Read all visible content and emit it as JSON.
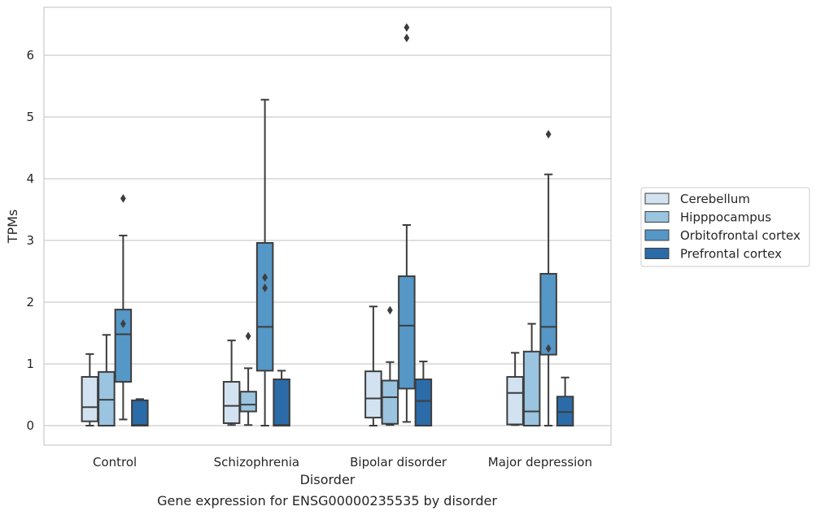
{
  "caption": "Gene expression for ENSG00000235535 by disorder",
  "chart_data": {
    "type": "box",
    "xlabel": "Disorder",
    "ylabel": "TPMs",
    "ylim": [
      -0.32,
      7.8
    ],
    "yticks": [
      0,
      1,
      2,
      3,
      4,
      5,
      6
    ],
    "grid": true,
    "legend_position": "right",
    "categories": [
      "Control",
      "Schizophrenia",
      "Bipolar disorder",
      "Major depression"
    ],
    "series": [
      {
        "name": "Cerebellum",
        "color": "#d3e2f0",
        "boxes": [
          {
            "whislo": 0.0,
            "q1": 0.07,
            "med": 0.3,
            "q3": 0.79,
            "whishi": 1.16,
            "fliers": []
          },
          {
            "whislo": 0.01,
            "q1": 0.04,
            "med": 0.32,
            "q3": 0.71,
            "whishi": 1.38,
            "fliers": []
          },
          {
            "whislo": 0.0,
            "q1": 0.13,
            "med": 0.44,
            "q3": 0.88,
            "whishi": 1.93,
            "fliers": []
          },
          {
            "whislo": 0.01,
            "q1": 0.02,
            "med": 0.53,
            "q3": 0.79,
            "whishi": 1.18,
            "fliers": []
          }
        ]
      },
      {
        "name": "Hipppocampus",
        "color": "#9ac4df",
        "boxes": [
          {
            "whislo": 0.0,
            "q1": 0.0,
            "med": 0.42,
            "q3": 0.87,
            "whishi": 1.47,
            "fliers": []
          },
          {
            "whislo": 0.01,
            "q1": 0.23,
            "med": 0.34,
            "q3": 0.55,
            "whishi": 0.93,
            "fliers": [
              1.45
            ]
          },
          {
            "whislo": 0.01,
            "q1": 0.03,
            "med": 0.46,
            "q3": 0.73,
            "whishi": 1.03,
            "fliers": [
              1.87
            ]
          },
          {
            "whislo": 0.0,
            "q1": 0.0,
            "med": 0.23,
            "q3": 1.2,
            "whishi": 1.65,
            "fliers": []
          }
        ]
      },
      {
        "name": "Orbitofrontal cortex",
        "color": "#5597c6",
        "boxes": [
          {
            "whislo": 0.1,
            "q1": 0.71,
            "med": 1.48,
            "q3": 1.88,
            "whishi": 3.08,
            "fliers": [
              1.65,
              3.68
            ]
          },
          {
            "whislo": 0.0,
            "q1": 0.89,
            "med": 1.6,
            "q3": 2.96,
            "whishi": 5.28,
            "fliers": [
              2.23,
              2.4
            ]
          },
          {
            "whislo": 0.06,
            "q1": 0.6,
            "med": 1.62,
            "q3": 2.42,
            "whishi": 3.25,
            "fliers": [
              6.28,
              6.45
            ]
          },
          {
            "whislo": 0.0,
            "q1": 1.15,
            "med": 1.6,
            "q3": 2.46,
            "whishi": 4.07,
            "fliers": [
              1.25,
              4.72
            ]
          }
        ]
      },
      {
        "name": "Prefrontal cortex",
        "color": "#2b6ba8",
        "boxes": [
          {
            "whislo": 0.0,
            "q1": 0.0,
            "med": 0.01,
            "q3": 0.41,
            "whishi": 0.43,
            "fliers": []
          },
          {
            "whislo": 0.0,
            "q1": 0.0,
            "med": 0.01,
            "q3": 0.75,
            "whishi": 0.89,
            "fliers": []
          },
          {
            "whislo": 0.0,
            "q1": 0.0,
            "med": 0.4,
            "q3": 0.75,
            "whishi": 1.04,
            "fliers": []
          },
          {
            "whislo": 0.0,
            "q1": 0.0,
            "med": 0.22,
            "q3": 0.47,
            "whishi": 0.78,
            "fliers": []
          }
        ]
      }
    ]
  }
}
